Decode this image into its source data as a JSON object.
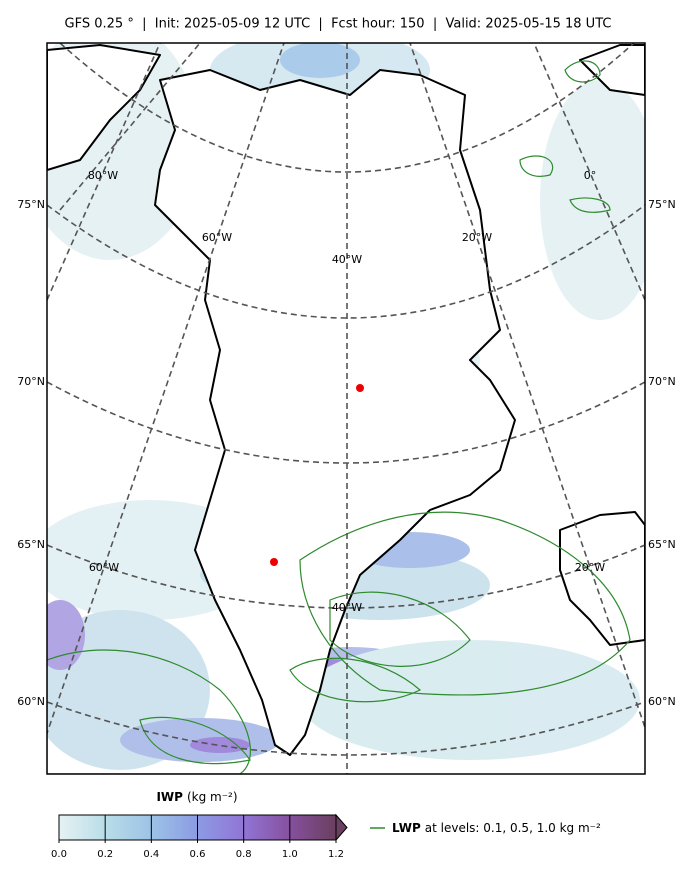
{
  "title": "GFS 0.25 °  |  Init: 2025-05-09 12 UTC  |  Fcst hour: 150  |  Valid: 2025-05-15 18 UTC",
  "lat_labels_left": [
    "75°N",
    "70°N",
    "65°N",
    "60°N"
  ],
  "lat_labels_right": [
    "75°N",
    "70°N",
    "65°N",
    "60°N"
  ],
  "lon_labels": [
    "80°W",
    "60°W",
    "40°W",
    "20°W",
    "0°",
    "60°W",
    "40°W",
    "20°W"
  ],
  "colorbar": {
    "name": "IWP",
    "unit": "(kg m⁻²)",
    "lim": [
      0,
      1.2
    ],
    "ticks": [
      {
        "value": 0,
        "label": "0.0"
      },
      {
        "value": 0.2,
        "label": "0.2"
      },
      {
        "value": 0.4,
        "label": "0.4"
      },
      {
        "value": 0.6,
        "label": "0.6"
      },
      {
        "value": 0.8,
        "label": "0.8"
      },
      {
        "value": 1.0,
        "label": "1.0"
      },
      {
        "value": 1.2,
        "label": "1.2"
      }
    ],
    "colors": [
      "#e6f2f3",
      "#b9dde8",
      "#9cc3e6",
      "#8c9be4",
      "#9175d6",
      "#86509e",
      "#6a3f5f"
    ]
  },
  "legend": {
    "name": "LWP",
    "text": "at levels: 0.1, 0.5, 1.0  kg m⁻²",
    "color": "#2e8b2e"
  }
}
